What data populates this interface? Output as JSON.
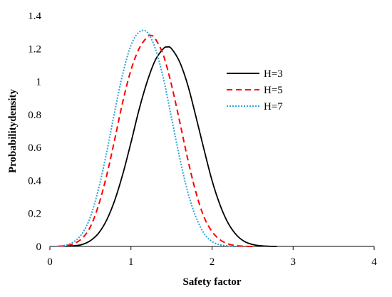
{
  "chart_data": {
    "type": "line",
    "xlabel": "Safety factor",
    "ylabel": "Probabilitydensity",
    "xlim": [
      0,
      4
    ],
    "ylim": [
      0,
      1.4
    ],
    "xticks": [
      "0",
      "1",
      "2",
      "3",
      "4"
    ],
    "yticks": [
      "0",
      "0.2",
      "0.4",
      "0.6",
      "0.8",
      "1",
      "1.2",
      "1.4"
    ],
    "grid": false,
    "legend_position": "top-right",
    "series": [
      {
        "name": "H=3",
        "color": "#000000",
        "style": "solid",
        "x": [
          0.2,
          0.3,
          0.4,
          0.5,
          0.6,
          0.7,
          0.8,
          0.9,
          1.0,
          1.1,
          1.2,
          1.3,
          1.4,
          1.45,
          1.5,
          1.6,
          1.7,
          1.8,
          1.9,
          2.0,
          2.1,
          2.2,
          2.3,
          2.4,
          2.5,
          2.6,
          2.7,
          2.8
        ],
        "y": [
          0.001,
          0.004,
          0.012,
          0.035,
          0.08,
          0.16,
          0.28,
          0.44,
          0.63,
          0.83,
          1.0,
          1.13,
          1.2,
          1.21,
          1.2,
          1.12,
          0.98,
          0.79,
          0.59,
          0.4,
          0.25,
          0.14,
          0.07,
          0.03,
          0.012,
          0.004,
          0.001,
          0.0
        ]
      },
      {
        "name": "H=5",
        "color": "#ff0000",
        "style": "dashed",
        "x": [
          0.1,
          0.2,
          0.3,
          0.4,
          0.5,
          0.6,
          0.7,
          0.8,
          0.9,
          1.0,
          1.1,
          1.2,
          1.25,
          1.3,
          1.4,
          1.5,
          1.6,
          1.7,
          1.8,
          1.9,
          2.0,
          2.1,
          2.2,
          2.3,
          2.4,
          2.5
        ],
        "y": [
          0.001,
          0.005,
          0.018,
          0.05,
          0.12,
          0.25,
          0.43,
          0.65,
          0.88,
          1.07,
          1.2,
          1.27,
          1.28,
          1.26,
          1.16,
          0.98,
          0.76,
          0.53,
          0.33,
          0.18,
          0.09,
          0.04,
          0.015,
          0.005,
          0.001,
          0.0
        ]
      },
      {
        "name": "H=7",
        "color": "#2aa5d8",
        "style": "dotted",
        "x": [
          0.1,
          0.2,
          0.3,
          0.4,
          0.5,
          0.6,
          0.7,
          0.8,
          0.9,
          1.0,
          1.1,
          1.2,
          1.3,
          1.4,
          1.5,
          1.6,
          1.7,
          1.8,
          1.9,
          2.0,
          2.1,
          2.2,
          2.3
        ],
        "y": [
          0.002,
          0.008,
          0.03,
          0.08,
          0.18,
          0.35,
          0.57,
          0.82,
          1.05,
          1.22,
          1.3,
          1.3,
          1.2,
          1.02,
          0.78,
          0.54,
          0.33,
          0.18,
          0.08,
          0.03,
          0.01,
          0.003,
          0.0
        ]
      }
    ]
  }
}
